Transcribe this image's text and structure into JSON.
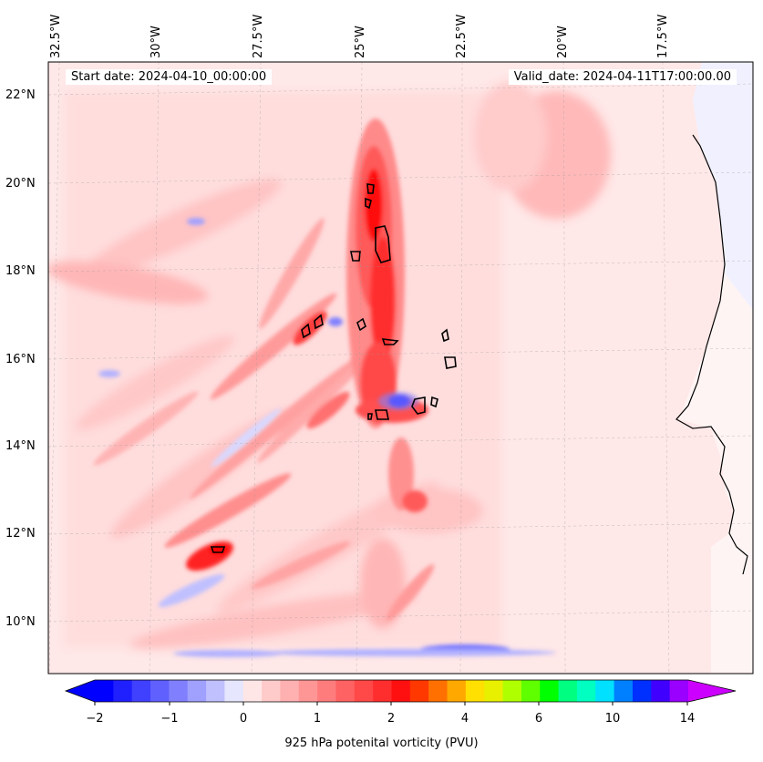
{
  "header": {
    "start_date": "Start date: 2024-04-10_00:00:00",
    "valid_date": "Valid_date: 2024-04-11T17:00:00.00"
  },
  "map": {
    "longitude_labels": [
      "32.5°W",
      "30°W",
      "27.5°W",
      "25°W",
      "22.5°W",
      "20°W",
      "17.5°W"
    ],
    "latitude_labels": [
      "22°N",
      "20°N",
      "18°N",
      "16°N",
      "14°N",
      "12°N",
      "10°N"
    ],
    "features": [
      "cape-verde-islands",
      "west-africa-coastline"
    ]
  },
  "colorbar": {
    "label": "925 hPa potenital vorticity (PVU)",
    "tick_labels": [
      "−2",
      "−1",
      "0",
      "1",
      "2",
      "4",
      "6",
      "10",
      "14"
    ],
    "colors": [
      "#0000ff",
      "#2020ff",
      "#4040ff",
      "#6060ff",
      "#8080ff",
      "#a0a0ff",
      "#c0c0ff",
      "#e6e6ff",
      "#ffe6e6",
      "#ffcaca",
      "#ffb0b0",
      "#ff9696",
      "#ff7c7c",
      "#ff6262",
      "#ff4848",
      "#ff2e2e",
      "#ff1010",
      "#ff3800",
      "#ff7000",
      "#ffa800",
      "#ffe000",
      "#e8f000",
      "#b0ff00",
      "#60ff00",
      "#00ff00",
      "#00ff80",
      "#00ffc0",
      "#00e0ff",
      "#0080ff",
      "#0030ff",
      "#4000ff",
      "#9900ff"
    ],
    "extend_low_color": "#0000ff",
    "extend_high_color": "#cc00ff"
  },
  "colors": {
    "background_field": "#ffe8e8",
    "land_east": "#f0f0ff",
    "coastline": "#000000"
  }
}
